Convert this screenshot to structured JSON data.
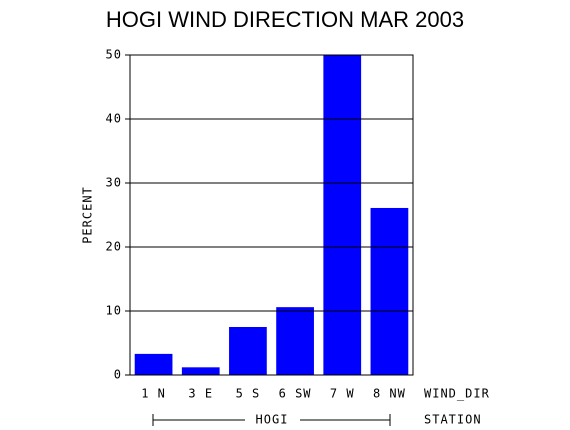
{
  "chart_data": {
    "type": "bar",
    "title": "HOGI WIND DIRECTION MAR 2003",
    "y_label": "PERCENT",
    "x_label": "WIND_DIR",
    "group_axis_label": "STATION",
    "group": "HOGI",
    "categories": [
      "1 N",
      "3 E",
      "5 S",
      "6 SW",
      "7 W",
      "8 NW"
    ],
    "values": [
      3.3,
      1.2,
      7.5,
      10.6,
      50,
      26.1
    ],
    "color": "#0000ff",
    "ylim": [
      0,
      50
    ],
    "yticks": [
      0,
      10,
      20,
      30,
      40,
      50
    ],
    "grid": true
  }
}
